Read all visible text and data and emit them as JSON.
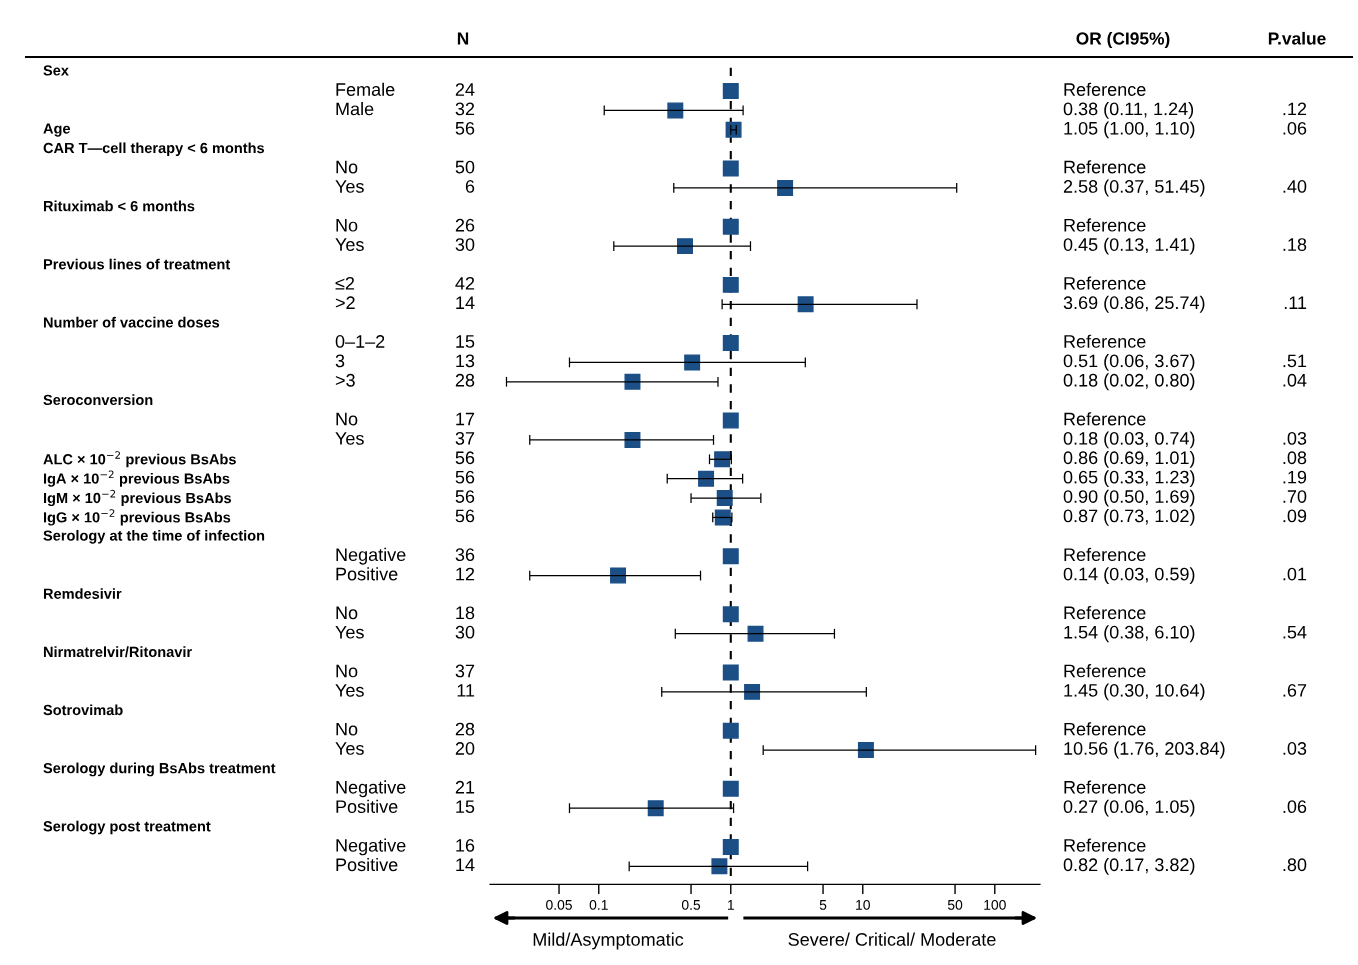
{
  "chart_data": {
    "type": "scatter",
    "orientation": "horizontal",
    "log": "x",
    "annotations": [
      "N",
      "OR (CI95%)",
      "P.value",
      "Mild/Asymptomatic",
      "Severe/ Critical/ Moderate",
      "Reference",
      "0.38 (0.11, 1.24)",
      "1.05 (1.00, 1.10)",
      "Reference",
      "2.58 (0.37, 51.45)",
      "Reference",
      "0.45 (0.13, 1.41)",
      "Reference",
      "3.69 (0.86, 25.74)",
      "Reference",
      "0.51 (0.06, 3.67)",
      "0.18 (0.02, 0.80)",
      "Reference",
      "0.18 (0.03, 0.74)",
      "0.86 (0.69, 1.01)",
      "0.65 (0.33, 1.23)",
      "0.90 (0.50, 1.69)",
      "0.87 (0.73, 1.02)",
      "Reference",
      "0.14 (0.03, 0.59)",
      "Reference",
      "1.54 (0.38, 6.10)",
      "Reference",
      "1.45 (0.30, 10.64)",
      "Reference",
      "10.56 (1.76, 203.84)",
      "Reference",
      "0.27 (0.06, 1.05)",
      "Reference",
      "0.82 (0.17, 3.82)",
      ".12",
      ".06",
      ".40",
      ".18",
      ".11",
      ".51",
      ".04",
      ".03",
      ".08",
      ".19",
      ".70",
      ".09",
      ".01",
      ".54",
      ".67",
      ".03",
      ".06",
      ".80"
    ],
    "y_categories": [
      "Sex",
      null,
      null,
      "Age",
      "CAR T—cell therapy < 6 months",
      null,
      null,
      "Rituximab < 6 months",
      null,
      null,
      "Previous lines of treatment",
      null,
      null,
      "Number of vaccine doses",
      null,
      null,
      null,
      "Seroconversion",
      null,
      null,
      "ALC × 10$^{−2}$ previous BsAbs",
      "IgA × 10$^{−2}$ previous BsAbs",
      "IgM × 10$^{−2}$ previous BsAbs",
      "IgG × 10$^{−2}$ previous BsAbs",
      "Serology at the time of infection",
      null,
      null,
      "Remdesivir",
      null,
      null,
      "Nirmatrelvir/Ritonavir",
      null,
      null,
      "Sotrovimab",
      null,
      null,
      "Serology during BsAbs treatment",
      null,
      null,
      "Serology post treatment",
      null,
      null
    ],
    "categories": [
      null,
      "Female",
      "Male",
      null,
      null,
      "No",
      "Yes",
      null,
      "No",
      "Yes",
      null,
      "≤2",
      ">2",
      null,
      "0–1–2",
      "3",
      ">3",
      null,
      "No",
      "Yes",
      null,
      null,
      null,
      null,
      null,
      "Negative",
      "Positive",
      null,
      "No",
      "Yes",
      null,
      "No",
      "Yes",
      null,
      "No",
      "Yes",
      null,
      "Negative",
      "Positive",
      null,
      "Negative",
      "Positive"
    ],
    "y2_categories": [
      null,
      "24",
      "32",
      "56",
      null,
      "50",
      "6",
      null,
      "26",
      "30",
      null,
      "42",
      "14",
      null,
      "15",
      "13",
      "28",
      null,
      "17",
      "37",
      "56",
      "56",
      "56",
      "56",
      null,
      "36",
      "12",
      null,
      "18",
      "30",
      null,
      "37",
      "11",
      null,
      "28",
      "20",
      null,
      "21",
      "15",
      null,
      "16",
      "14"
    ],
    "series": [
      {
        "color": "#1b4f86",
        "marker": "square",
        "values": [
          null,
          1,
          0.38,
          1.05,
          null,
          1,
          2.58,
          null,
          1,
          0.45,
          null,
          1,
          3.69,
          null,
          1,
          0.51,
          0.18,
          null,
          1,
          0.18,
          0.86,
          0.65,
          0.9,
          0.87,
          null,
          1,
          0.14,
          null,
          1,
          1.54,
          null,
          1,
          1.45,
          null,
          1,
          10.56,
          null,
          1,
          0.27,
          null,
          1,
          0.82
        ],
        "errors": [
          null,
          null,
          [
            0.11,
            1.24
          ],
          [
            1.0,
            1.1
          ],
          null,
          null,
          [
            0.37,
            51.45
          ],
          null,
          null,
          [
            0.13,
            1.41
          ],
          null,
          null,
          [
            0.86,
            25.74
          ],
          null,
          null,
          [
            0.06,
            3.67
          ],
          [
            0.02,
            0.8
          ],
          null,
          null,
          [
            0.03,
            0.74
          ],
          [
            0.69,
            1.01
          ],
          [
            0.33,
            1.23
          ],
          [
            0.5,
            1.69
          ],
          [
            0.73,
            1.02
          ],
          null,
          null,
          [
            0.03,
            0.59
          ],
          null,
          null,
          [
            0.38,
            6.1
          ],
          null,
          null,
          [
            0.3,
            10.64
          ],
          null,
          null,
          [
            1.76,
            203.84
          ],
          null,
          null,
          [
            0.06,
            1.05
          ],
          null,
          null,
          [
            0.17,
            3.82
          ]
        ]
      }
    ],
    "xlim": [
      0.015,
      220
    ],
    "xticks": [
      0.05,
      0.1,
      0.5,
      1,
      5,
      10,
      50,
      100
    ],
    "ref_lines": [
      {
        "axis": "x",
        "value": 1,
        "color": "#000000",
        "line_style": "dashed"
      }
    ],
    "grid": false
  }
}
